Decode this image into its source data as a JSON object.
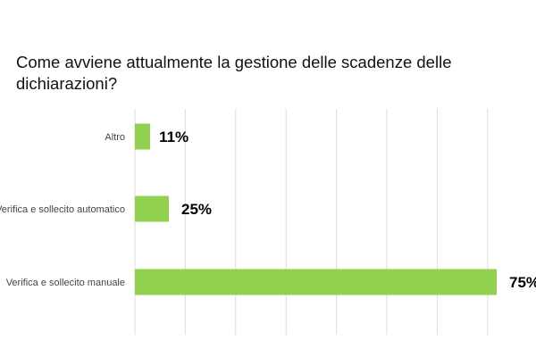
{
  "chart_data": {
    "type": "bar",
    "orientation": "horizontal",
    "title": "Come avviene attualmente la gestione delle scadenze delle dichiarazioni?",
    "categories": [
      "Altro",
      "Verifica e sollecito automatico",
      "Verifica e sollecito manuale"
    ],
    "values": [
      11,
      25,
      75
    ],
    "value_labels": [
      "11%",
      "25%",
      "75%"
    ],
    "unit": "%",
    "grid": "vertical",
    "bar_color": "#92d050"
  }
}
